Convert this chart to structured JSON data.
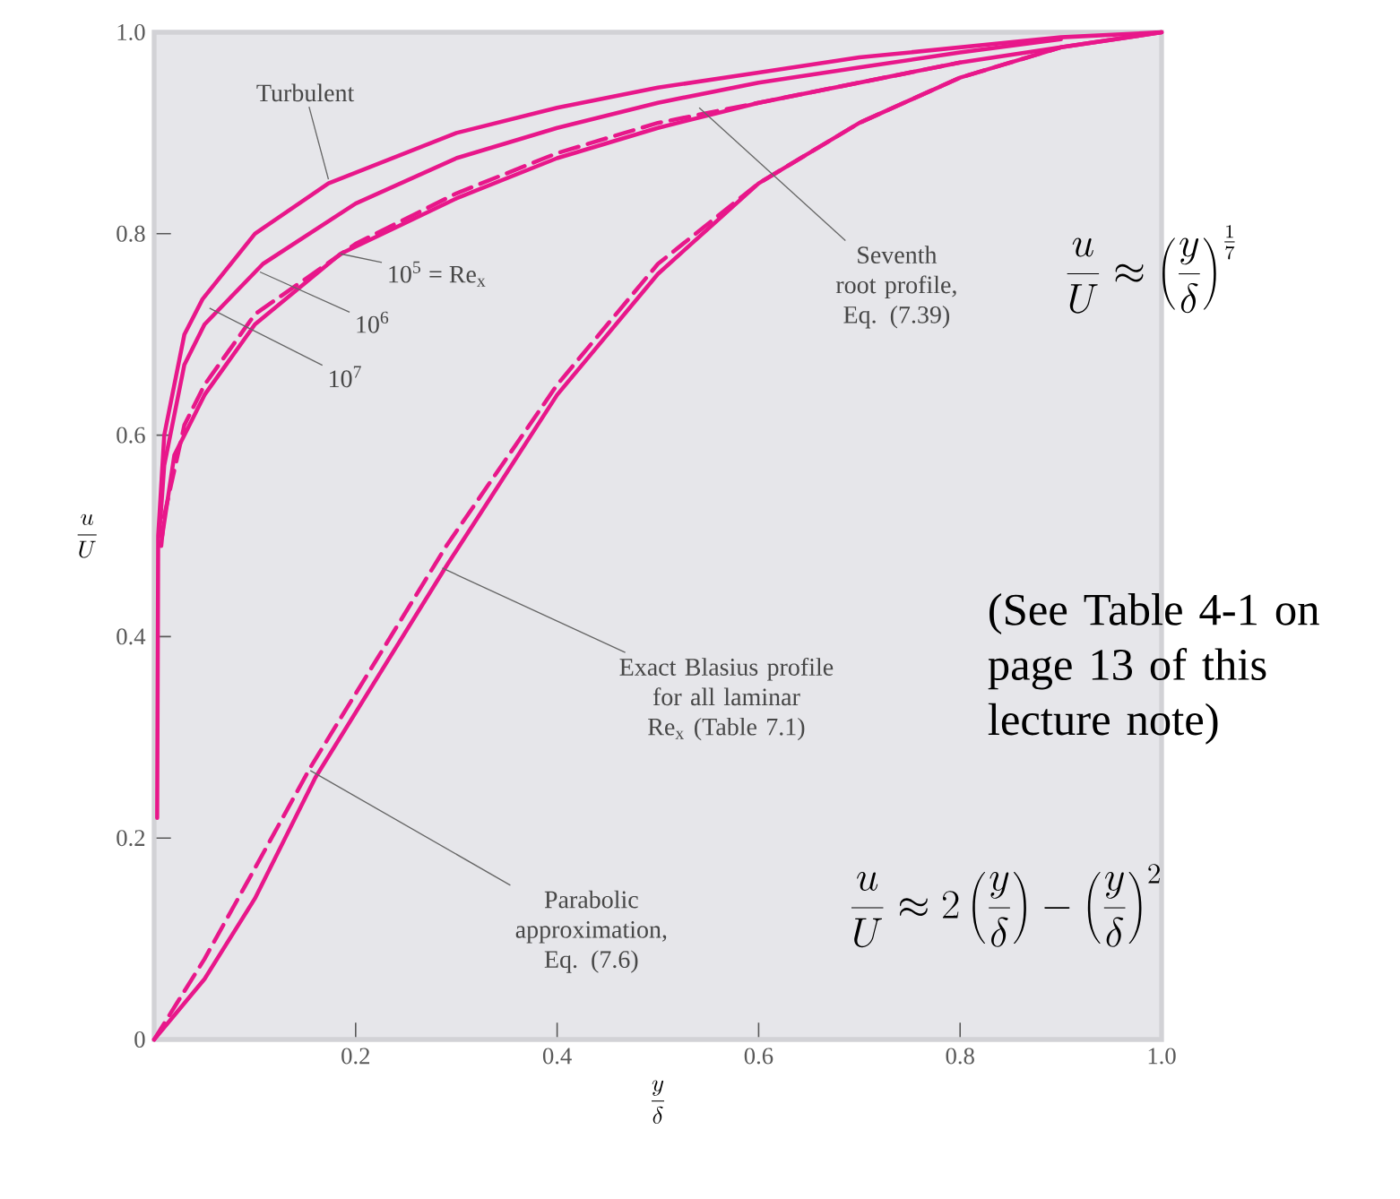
{
  "chart_data": {
    "type": "line",
    "xlabel": "\\frac{y}{\\delta}",
    "ylabel": "\\frac{u}{U}",
    "xlim": [
      0,
      1
    ],
    "ylim": [
      0,
      1
    ],
    "xticks": [
      0.2,
      0.4,
      0.6,
      0.8,
      {
        "value": 1,
        "label": "1.0"
      }
    ],
    "yticks": [
      0,
      0.2,
      0.4,
      0.6,
      0.8,
      {
        "value": 1,
        "label": "1.0"
      }
    ],
    "series": [
      {
        "color": "#e8178a",
        "x": [
          0.003,
          0.004,
          0.01,
          0.03,
          0.048,
          0.1,
          0.173,
          0.3,
          0.4,
          0.5,
          0.6,
          0.7,
          0.8,
          0.9,
          1.0
        ],
        "values": [
          0.22,
          0.5,
          0.6,
          0.7,
          0.735,
          0.8,
          0.85,
          0.9,
          0.925,
          0.945,
          0.96,
          0.975,
          0.985,
          0.995,
          1.0
        ]
      },
      {
        "color": "#e8178a",
        "x": [
          0.005,
          0.01,
          0.03,
          0.05,
          0.108,
          0.2,
          0.3,
          0.4,
          0.5,
          0.6,
          0.7,
          0.8,
          0.9
        ],
        "values": [
          0.5,
          0.57,
          0.67,
          0.71,
          0.77,
          0.83,
          0.875,
          0.905,
          0.93,
          0.95,
          0.965,
          0.98,
          0.993
        ]
      },
      {
        "color": "#e8178a",
        "x": [
          0.008,
          0.02,
          0.05,
          0.1,
          0.185,
          0.3,
          0.4,
          0.5,
          0.6,
          0.7,
          0.8,
          0.9,
          1.0
        ],
        "values": [
          0.5,
          0.58,
          0.64,
          0.71,
          0.78,
          0.835,
          0.875,
          0.905,
          0.93,
          0.95,
          0.97,
          0.985,
          1.0
        ]
      },
      {
        "color": "#e8178a",
        "line_style": "dashed",
        "x": [
          0.007,
          0.01,
          0.03,
          0.05,
          0.1,
          0.2,
          0.3,
          0.4,
          0.5,
          0.6,
          0.7,
          0.8
        ],
        "values": [
          0.49,
          0.52,
          0.61,
          0.65,
          0.72,
          0.79,
          0.84,
          0.88,
          0.91,
          0.93,
          0.95,
          0.97
        ]
      },
      {
        "color": "#e8178a",
        "x": [
          0,
          0.05,
          0.1,
          0.16,
          0.29,
          0.4,
          0.5,
          0.6,
          0.7,
          0.8,
          0.9,
          1.0
        ],
        "values": [
          0,
          0.06,
          0.14,
          0.26,
          0.47,
          0.64,
          0.76,
          0.85,
          0.91,
          0.955,
          0.985,
          1.0
        ]
      },
      {
        "color": "#e8178a",
        "line_style": "dashed",
        "x": [
          0,
          0.05,
          0.1,
          0.155,
          0.29,
          0.4,
          0.5,
          0.6,
          0.7,
          0.8,
          0.9
        ],
        "values": [
          0,
          0.08,
          0.17,
          0.27,
          0.49,
          0.65,
          0.77,
          0.85,
          0.91,
          0.955,
          0.985
        ]
      }
    ],
    "annotations": [
      {
        "text": "Turbulent",
        "x": 0.173,
        "y": 0.854
      },
      {
        "text": "10$^{5}$ = Re$_{x}$",
        "x": 0.185,
        "y": 0.78
      },
      {
        "text": "10$^{6}$",
        "x": 0.105,
        "y": 0.762
      },
      {
        "text": "10$^{7}$",
        "x": 0.055,
        "y": 0.726
      },
      {
        "text": "Seventh root profile, Eq. (7.39)",
        "x": 0.541,
        "y": 0.925
      },
      {
        "text": "Exact Blasius profile for all laminar Re$_{x}$ (Table 7.1)",
        "x": 0.286,
        "y": 0.468
      },
      {
        "text": "Parabolic approximation, Eq. (7.6)",
        "x": 0.155,
        "y": 0.267
      },
      "(See Table 4-1 on page 13 of this lecture note)",
      "\\frac{u}{U} \\approx \\left(\\frac{y}{\\delta}\\right)^{\\frac{1}{7}}",
      "\\frac{u}{U} \\approx 2\\left(\\frac{y}{\\delta}\\right) - \\left(\\frac{y}{\\delta}\\right)^{2}"
    ]
  }
}
